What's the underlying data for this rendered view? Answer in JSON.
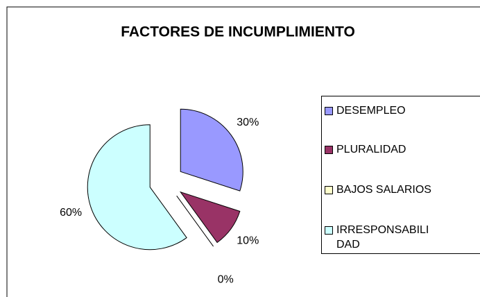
{
  "chart_data": {
    "type": "pie",
    "title": "FACTORES DE INCUMPLIMIENTO",
    "categories": [
      "DESEMPLEO",
      "PLURALIDAD",
      "BAJOS SALARIOS",
      "IRRESPONSABILIDAD"
    ],
    "values": [
      30,
      10,
      0,
      60
    ],
    "value_labels": [
      "30%",
      "10%",
      "0%",
      "60%"
    ],
    "colors": [
      "#9999ff",
      "#993366",
      "#ffffcc",
      "#ccffff"
    ],
    "legend": "right"
  }
}
